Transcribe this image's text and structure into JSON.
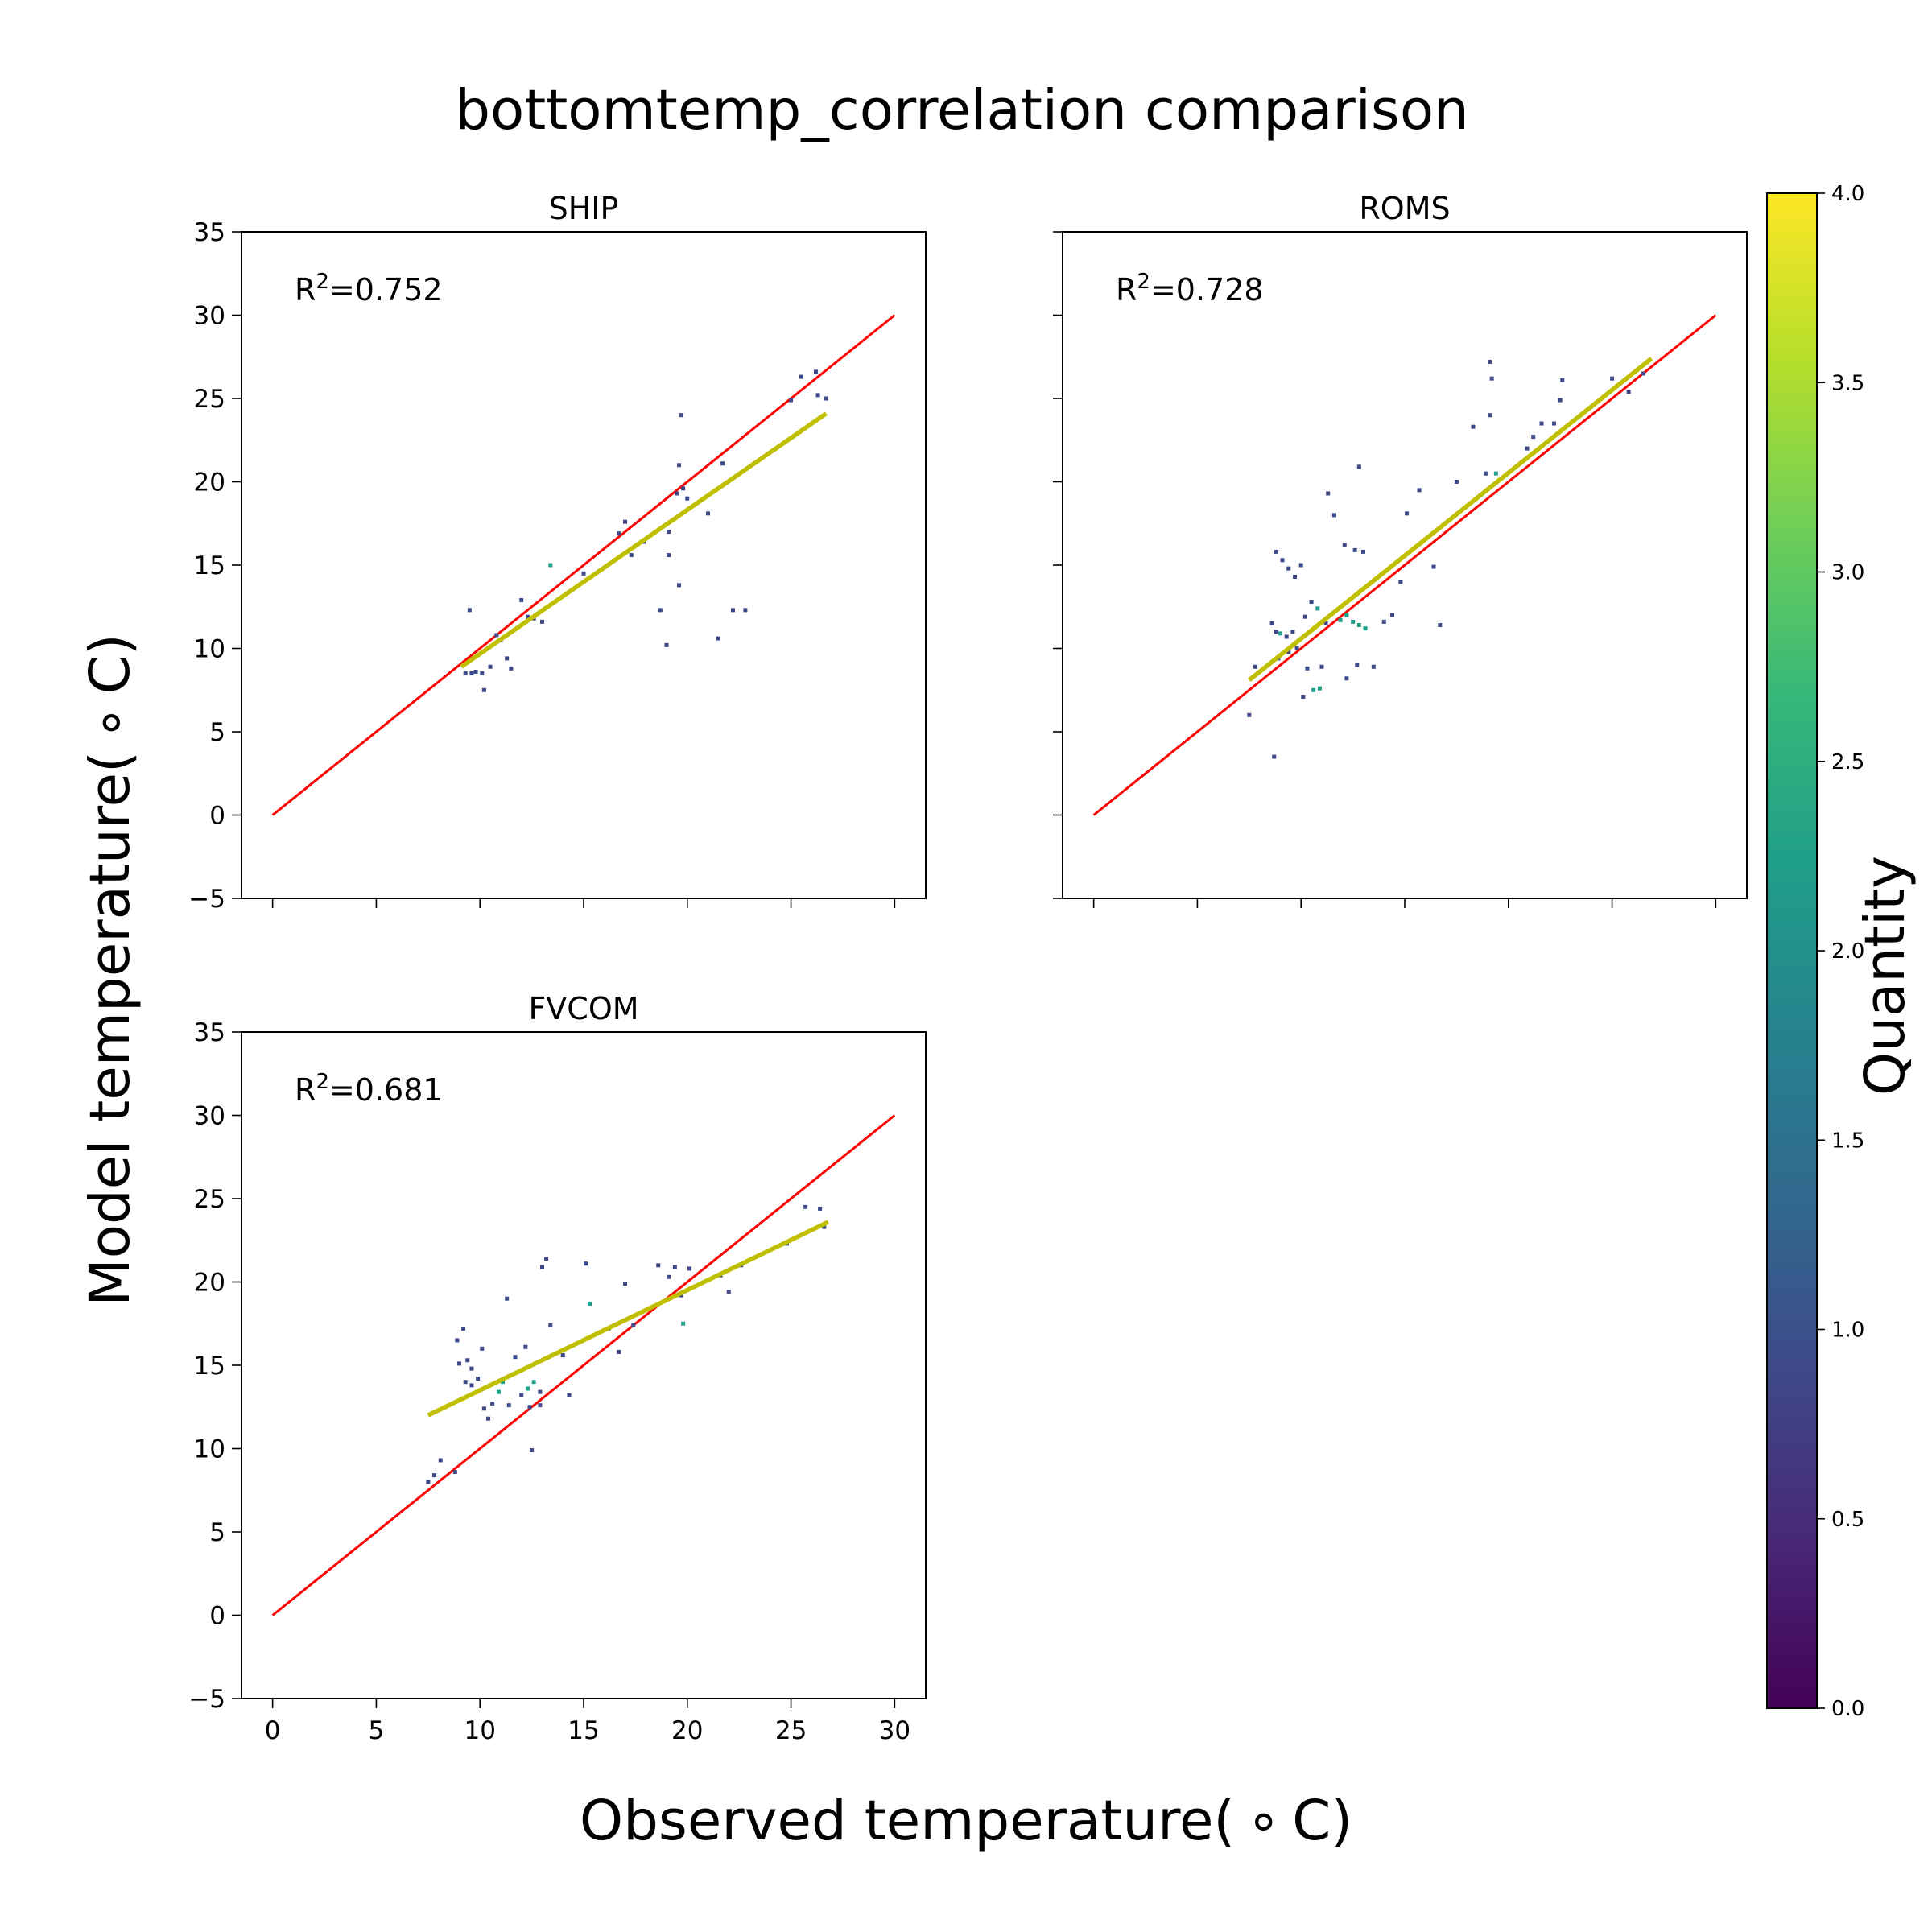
{
  "figure": {
    "title": "bottomtemp_correlation comparison",
    "xlabel": "Observed temperature( $^\\circ$C)",
    "xlabel_display": "Observed temperature( ∘ C)",
    "ylabel_display": "Model temperature( ∘ C)",
    "colorbar": {
      "label": "Quantity",
      "range": [
        0.0,
        4.0
      ],
      "ticks": [
        "0.0",
        "0.5",
        "1.0",
        "1.5",
        "2.0",
        "2.5",
        "3.0",
        "3.5",
        "4.0"
      ],
      "colormap": [
        "#440154",
        "#482878",
        "#3e4989",
        "#31688e",
        "#26828e",
        "#1f9e89",
        "#35b779",
        "#6ece58",
        "#b5de2b",
        "#fde725"
      ]
    },
    "colors": {
      "one_to_one_line": "#ff0000",
      "fit_line": "#bfbf00"
    }
  },
  "chart_data": [
    {
      "type": "scatter",
      "title": "SHIP",
      "annotation": "R²=0.752",
      "xlim": [
        -1.5,
        31.5
      ],
      "ylim": [
        -5,
        35
      ],
      "xticks": [
        "0",
        "5",
        "10",
        "15",
        "20",
        "25",
        "30"
      ],
      "yticks": [
        "−5",
        "0",
        "5",
        "10",
        "15",
        "20",
        "25",
        "30",
        "35"
      ],
      "show_xtick_labels": false,
      "show_ytick_labels": true,
      "one_to_one": [
        [
          0,
          0
        ],
        [
          30,
          30
        ]
      ],
      "fit": [
        [
          9.1,
          8.9
        ],
        [
          26.7,
          24.1
        ]
      ],
      "points": [
        [
          9.3,
          8.5,
          1
        ],
        [
          9.6,
          8.5,
          1
        ],
        [
          9.8,
          8.6,
          1
        ],
        [
          10.1,
          8.5,
          1
        ],
        [
          10.2,
          7.5,
          1
        ],
        [
          10.5,
          8.9,
          1
        ],
        [
          9.5,
          12.3,
          1
        ],
        [
          10.8,
          10.8,
          1
        ],
        [
          11.0,
          10.5,
          1
        ],
        [
          11.3,
          9.4,
          1
        ],
        [
          11.5,
          8.8,
          1
        ],
        [
          12.0,
          12.9,
          1
        ],
        [
          12.3,
          11.9,
          1
        ],
        [
          12.6,
          11.8,
          1
        ],
        [
          13.0,
          11.6,
          1
        ],
        [
          13.4,
          15.0,
          2
        ],
        [
          15.0,
          14.5,
          1
        ],
        [
          16.7,
          16.9,
          1
        ],
        [
          17.0,
          17.6,
          1
        ],
        [
          17.3,
          15.6,
          1
        ],
        [
          17.9,
          16.4,
          1
        ],
        [
          18.7,
          12.3,
          1
        ],
        [
          19.0,
          10.2,
          1
        ],
        [
          19.1,
          15.6,
          1
        ],
        [
          19.1,
          17.0,
          1
        ],
        [
          19.5,
          19.3,
          1
        ],
        [
          19.6,
          21.0,
          1
        ],
        [
          19.7,
          24.0,
          1
        ],
        [
          19.8,
          19.6,
          1
        ],
        [
          20.0,
          19.0,
          1
        ],
        [
          19.6,
          13.8,
          1
        ],
        [
          21.0,
          18.1,
          1
        ],
        [
          21.5,
          10.6,
          1
        ],
        [
          21.7,
          21.1,
          1
        ],
        [
          22.2,
          12.3,
          1
        ],
        [
          22.8,
          12.3,
          1
        ],
        [
          25.0,
          24.9,
          1
        ],
        [
          25.5,
          26.3,
          1
        ],
        [
          26.2,
          26.6,
          1
        ],
        [
          26.3,
          25.2,
          1
        ],
        [
          26.7,
          25.0,
          1
        ]
      ]
    },
    {
      "type": "scatter",
      "title": "ROMS",
      "annotation": "R²=0.728",
      "xlim": [
        -1.5,
        31.5
      ],
      "ylim": [
        -5,
        35
      ],
      "xticks": [
        "0",
        "5",
        "10",
        "15",
        "20",
        "25",
        "30"
      ],
      "yticks": [
        "−5",
        "0",
        "5",
        "10",
        "15",
        "20",
        "25",
        "30",
        "35"
      ],
      "show_xtick_labels": false,
      "show_ytick_labels": false,
      "one_to_one": [
        [
          0,
          0
        ],
        [
          30,
          30
        ]
      ],
      "fit": [
        [
          7.5,
          8.1
        ],
        [
          26.9,
          27.4
        ]
      ],
      "points": [
        [
          7.5,
          6.0,
          1
        ],
        [
          7.8,
          8.9,
          1
        ],
        [
          8.7,
          3.5,
          1
        ],
        [
          8.6,
          11.5,
          1
        ],
        [
          8.8,
          11.0,
          1
        ],
        [
          9.0,
          10.9,
          2
        ],
        [
          9.3,
          10.7,
          1
        ],
        [
          9.6,
          11.0,
          1
        ],
        [
          8.8,
          15.8,
          1
        ],
        [
          9.1,
          15.3,
          1
        ],
        [
          9.4,
          14.8,
          1
        ],
        [
          9.7,
          14.3,
          1
        ],
        [
          10.0,
          15.0,
          1
        ],
        [
          8.9,
          9.4,
          1
        ],
        [
          9.4,
          9.8,
          1
        ],
        [
          9.8,
          10.0,
          1
        ],
        [
          10.1,
          7.1,
          1
        ],
        [
          10.3,
          8.8,
          1
        ],
        [
          10.6,
          7.5,
          2
        ],
        [
          10.9,
          7.6,
          2
        ],
        [
          11.0,
          8.9,
          1
        ],
        [
          10.2,
          11.9,
          1
        ],
        [
          10.5,
          12.8,
          1
        ],
        [
          10.8,
          12.4,
          2
        ],
        [
          11.2,
          11.5,
          1
        ],
        [
          11.3,
          19.3,
          1
        ],
        [
          11.6,
          18.0,
          1
        ],
        [
          11.9,
          11.7,
          2
        ],
        [
          12.2,
          12.0,
          2
        ],
        [
          12.5,
          11.6,
          2
        ],
        [
          12.8,
          11.4,
          2
        ],
        [
          13.1,
          11.2,
          2
        ],
        [
          12.1,
          16.2,
          1
        ],
        [
          12.6,
          15.9,
          1
        ],
        [
          13.0,
          15.8,
          1
        ],
        [
          12.8,
          20.9,
          1
        ],
        [
          12.2,
          8.2,
          1
        ],
        [
          12.7,
          9.0,
          1
        ],
        [
          13.5,
          8.9,
          1
        ],
        [
          14.0,
          11.6,
          1
        ],
        [
          14.4,
          12.0,
          1
        ],
        [
          14.8,
          14.0,
          1
        ],
        [
          15.1,
          18.1,
          1
        ],
        [
          15.7,
          19.5,
          1
        ],
        [
          16.4,
          14.9,
          1
        ],
        [
          16.7,
          11.4,
          1
        ],
        [
          17.5,
          20.0,
          1
        ],
        [
          18.3,
          23.3,
          1
        ],
        [
          18.9,
          20.5,
          1
        ],
        [
          19.1,
          24.0,
          1
        ],
        [
          19.2,
          26.2,
          1
        ],
        [
          19.1,
          27.2,
          1
        ],
        [
          19.4,
          20.5,
          2
        ],
        [
          20.9,
          22.0,
          1
        ],
        [
          21.2,
          22.7,
          1
        ],
        [
          21.6,
          23.5,
          1
        ],
        [
          22.2,
          23.5,
          1
        ],
        [
          22.5,
          24.9,
          1
        ],
        [
          22.6,
          26.1,
          1
        ],
        [
          25.0,
          26.2,
          1
        ],
        [
          25.8,
          25.4,
          1
        ],
        [
          26.5,
          26.5,
          1
        ]
      ]
    },
    {
      "type": "scatter",
      "title": "FVCOM",
      "annotation": "R²=0.681",
      "xlim": [
        -1.5,
        31.5
      ],
      "ylim": [
        -5,
        35
      ],
      "xticks": [
        "0",
        "5",
        "10",
        "15",
        "20",
        "25",
        "30"
      ],
      "yticks": [
        "−5",
        "0",
        "5",
        "10",
        "15",
        "20",
        "25",
        "30",
        "35"
      ],
      "show_xtick_labels": true,
      "show_ytick_labels": true,
      "one_to_one": [
        [
          0,
          0
        ],
        [
          30,
          30
        ]
      ],
      "fit": [
        [
          7.5,
          12.0
        ],
        [
          26.8,
          23.6
        ]
      ],
      "points": [
        [
          7.5,
          8.0,
          1
        ],
        [
          7.8,
          8.4,
          1
        ],
        [
          8.1,
          9.3,
          1
        ],
        [
          8.8,
          8.6,
          1
        ],
        [
          8.9,
          16.5,
          1
        ],
        [
          9.0,
          15.1,
          1
        ],
        [
          9.2,
          17.2,
          1
        ],
        [
          9.4,
          15.3,
          1
        ],
        [
          9.6,
          14.8,
          1
        ],
        [
          9.3,
          14.0,
          1
        ],
        [
          9.6,
          13.8,
          1
        ],
        [
          9.9,
          14.2,
          1
        ],
        [
          10.1,
          16.0,
          1
        ],
        [
          10.2,
          12.4,
          1
        ],
        [
          10.4,
          11.8,
          1
        ],
        [
          10.6,
          12.7,
          1
        ],
        [
          10.9,
          13.4,
          2
        ],
        [
          11.1,
          14.0,
          2
        ],
        [
          11.4,
          12.6,
          1
        ],
        [
          11.3,
          19.0,
          1
        ],
        [
          11.7,
          15.5,
          1
        ],
        [
          12.0,
          13.2,
          1
        ],
        [
          12.3,
          13.6,
          2
        ],
        [
          12.6,
          14.0,
          2
        ],
        [
          12.9,
          13.4,
          1
        ],
        [
          12.4,
          12.5,
          1
        ],
        [
          12.2,
          16.1,
          1
        ],
        [
          12.5,
          9.9,
          1
        ],
        [
          12.9,
          12.6,
          1
        ],
        [
          13.0,
          20.9,
          1
        ],
        [
          13.2,
          21.4,
          1
        ],
        [
          13.4,
          17.4,
          1
        ],
        [
          14.0,
          15.6,
          1
        ],
        [
          14.3,
          13.2,
          1
        ],
        [
          15.1,
          21.1,
          1
        ],
        [
          15.3,
          18.7,
          2
        ],
        [
          16.2,
          17.2,
          1
        ],
        [
          16.7,
          15.8,
          1
        ],
        [
          17.0,
          19.9,
          1
        ],
        [
          17.4,
          17.4,
          1
        ],
        [
          18.6,
          21.0,
          1
        ],
        [
          19.1,
          20.3,
          1
        ],
        [
          19.4,
          20.9,
          1
        ],
        [
          19.7,
          19.2,
          1
        ],
        [
          19.8,
          17.5,
          2
        ],
        [
          20.1,
          20.8,
          1
        ],
        [
          21.6,
          20.4,
          1
        ],
        [
          22.0,
          19.4,
          1
        ],
        [
          22.6,
          21.0,
          1
        ],
        [
          24.8,
          22.3,
          1
        ],
        [
          25.7,
          24.5,
          1
        ],
        [
          26.4,
          24.4,
          1
        ],
        [
          26.6,
          23.3,
          1
        ]
      ]
    }
  ]
}
